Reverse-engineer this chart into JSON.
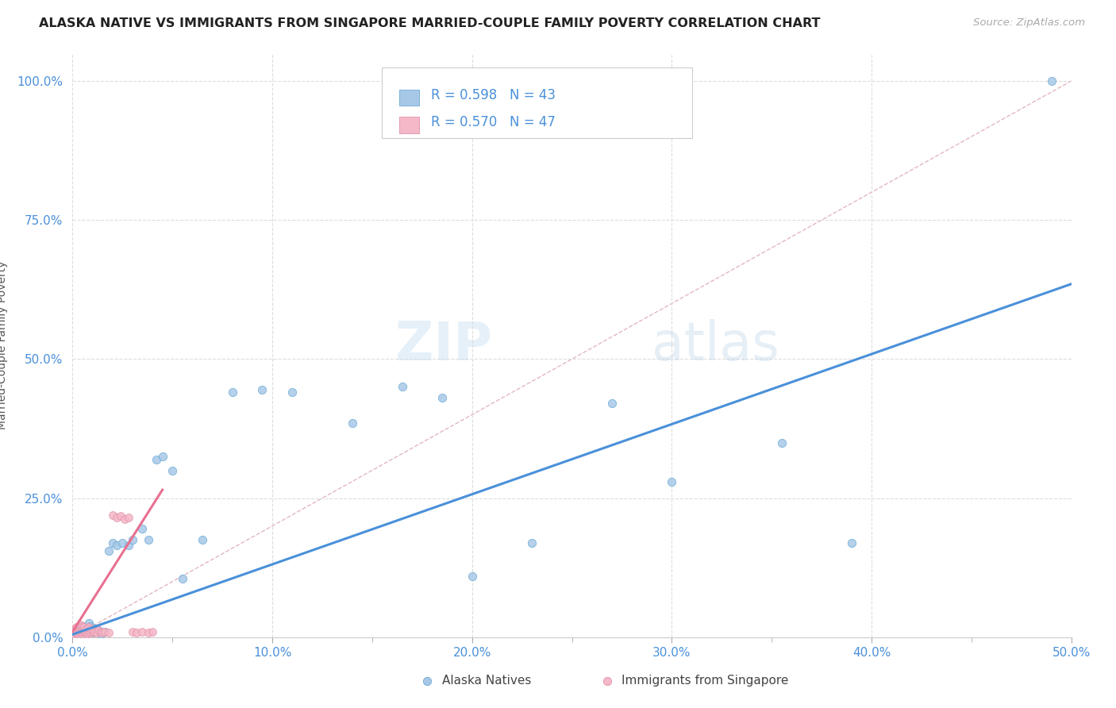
{
  "title": "ALASKA NATIVE VS IMMIGRANTS FROM SINGAPORE MARRIED-COUPLE FAMILY POVERTY CORRELATION CHART",
  "source": "Source: ZipAtlas.com",
  "ylabel": "Married-Couple Family Poverty",
  "xlim": [
    0.0,
    0.5
  ],
  "ylim": [
    0.0,
    1.05
  ],
  "xticks": [
    0.0,
    0.1,
    0.2,
    0.3,
    0.4,
    0.5
  ],
  "xticklabels": [
    "0.0%",
    "10.0%",
    "20.0%",
    "30.0%",
    "40.0%",
    "50.0%"
  ],
  "yticks": [
    0.0,
    0.25,
    0.5,
    0.75,
    1.0
  ],
  "yticklabels": [
    "0.0%",
    "25.0%",
    "50.0%",
    "75.0%",
    "100.0%"
  ],
  "legend_r1": "R = 0.598",
  "legend_n1": "N = 43",
  "legend_r2": "R = 0.570",
  "legend_n2": "N = 47",
  "color_alaska": "#a8c8e8",
  "color_alaska_edge": "#6aaad4",
  "color_singapore": "#f5b8c8",
  "color_singapore_edge": "#e090a8",
  "color_line_alaska": "#4a90d9",
  "color_line_singapore": "#e87090",
  "color_diagonal": "#e0b0b8",
  "alaska_x": [
    0.001,
    0.002,
    0.003,
    0.004,
    0.004,
    0.005,
    0.006,
    0.006,
    0.007,
    0.008,
    0.009,
    0.01,
    0.011,
    0.012,
    0.013,
    0.014,
    0.016,
    0.018,
    0.02,
    0.022,
    0.025,
    0.028,
    0.03,
    0.035,
    0.038,
    0.042,
    0.045,
    0.05,
    0.055,
    0.065,
    0.08,
    0.095,
    0.11,
    0.14,
    0.165,
    0.185,
    0.2,
    0.23,
    0.27,
    0.3,
    0.355,
    0.39,
    0.49
  ],
  "alaska_y": [
    0.005,
    0.01,
    0.008,
    0.015,
    0.012,
    0.02,
    0.018,
    0.01,
    0.015,
    0.025,
    0.02,
    0.008,
    0.015,
    0.01,
    0.012,
    0.005,
    0.01,
    0.155,
    0.17,
    0.165,
    0.17,
    0.165,
    0.175,
    0.195,
    0.175,
    0.32,
    0.325,
    0.3,
    0.105,
    0.175,
    0.44,
    0.445,
    0.44,
    0.385,
    0.45,
    0.43,
    0.11,
    0.17,
    0.42,
    0.28,
    0.35,
    0.17,
    1.0
  ],
  "singapore_x": [
    0.001,
    0.001,
    0.001,
    0.002,
    0.002,
    0.002,
    0.003,
    0.003,
    0.003,
    0.003,
    0.004,
    0.004,
    0.004,
    0.004,
    0.005,
    0.005,
    0.005,
    0.005,
    0.006,
    0.006,
    0.006,
    0.007,
    0.007,
    0.007,
    0.008,
    0.008,
    0.009,
    0.009,
    0.01,
    0.01,
    0.011,
    0.012,
    0.013,
    0.014,
    0.015,
    0.016,
    0.018,
    0.02,
    0.022,
    0.024,
    0.026,
    0.028,
    0.03,
    0.032,
    0.035,
    0.038,
    0.04
  ],
  "singapore_y": [
    0.005,
    0.01,
    0.015,
    0.008,
    0.012,
    0.018,
    0.005,
    0.01,
    0.015,
    0.02,
    0.008,
    0.012,
    0.018,
    0.022,
    0.005,
    0.01,
    0.015,
    0.02,
    0.008,
    0.012,
    0.018,
    0.005,
    0.01,
    0.015,
    0.008,
    0.018,
    0.01,
    0.015,
    0.008,
    0.012,
    0.01,
    0.008,
    0.012,
    0.01,
    0.008,
    0.01,
    0.008,
    0.22,
    0.215,
    0.218,
    0.212,
    0.215,
    0.01,
    0.008,
    0.01,
    0.008,
    0.01
  ],
  "alaska_line_x": [
    0.0,
    0.5
  ],
  "alaska_line_y": [
    0.005,
    0.635
  ],
  "singapore_line_x": [
    0.0,
    0.045
  ],
  "singapore_line_y": [
    0.01,
    0.265
  ]
}
